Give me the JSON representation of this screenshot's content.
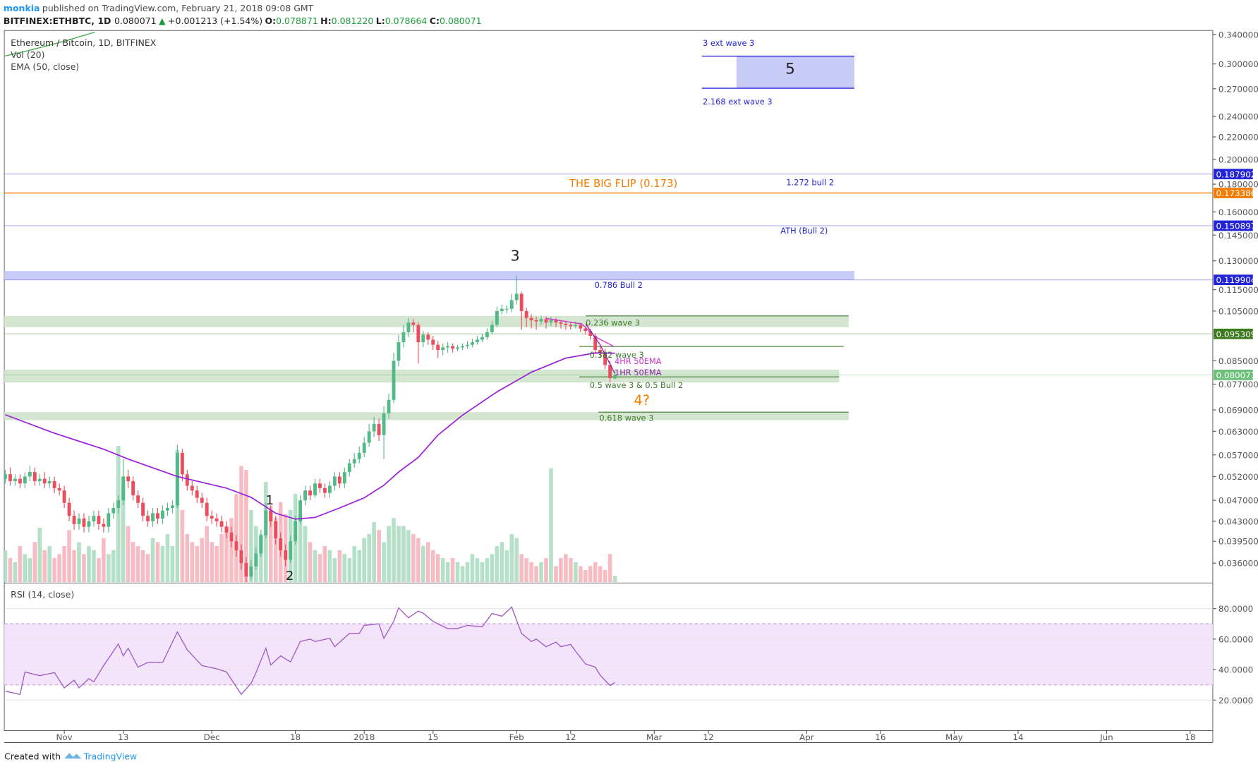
{
  "header": {
    "user": "monkia",
    "published": "published on TradingView.com, February 21, 2018 09:08 GMT",
    "symbol": "BITFINEX:ETHBTC, 1D",
    "last": "0.080071",
    "arrow": "▲",
    "change": "+0.001213 (+1.54%)",
    "o_label": "O:",
    "o": "0.078871",
    "h_label": "H:",
    "h": "0.081220",
    "l_label": "L:",
    "l": "0.078664",
    "c_label": "C:",
    "c": "0.080071"
  },
  "footer": {
    "created": "Created with",
    "brand": "TradingView"
  },
  "annotations": [
    "3 ext wave 3",
    "5",
    "2.168 ext wave 3",
    "THE BIG FLIP (0.173)",
    "1.272 bull 2",
    "ATH (Bull 2)",
    "3",
    "0.786 Bull 2",
    "0.236 wave 3",
    "0.382 wave 3",
    "4HR 50EMA",
    "1HR 50EMA",
    "0.5 wave 3 & 0.5 Bull 2",
    "4?",
    "0.618 wave 3",
    "1",
    "2"
  ],
  "chart_data": {
    "type": "candlestick",
    "title": "Ethereum / Bitcoin, 1D, BITFINEX",
    "log_scale": true,
    "up_color": "#53b987",
    "down_color": "#eb4d5c",
    "xlim": [
      -0.2,
      245.6
    ],
    "xticks": [
      {
        "value": 12,
        "label": "Nov"
      },
      {
        "value": 24,
        "label": "13"
      },
      {
        "value": 42,
        "label": "Dec"
      },
      {
        "value": 59,
        "label": "18"
      },
      {
        "value": 73,
        "label": "2018"
      },
      {
        "value": 87,
        "label": "15"
      },
      {
        "value": 104,
        "label": "Feb"
      },
      {
        "value": 115,
        "label": "12"
      },
      {
        "value": 132,
        "label": "Mar"
      },
      {
        "value": 143,
        "label": "12"
      },
      {
        "value": 163,
        "label": "Apr"
      },
      {
        "value": 178,
        "label": "16"
      },
      {
        "value": 193,
        "label": "May"
      },
      {
        "value": 206,
        "label": "14"
      },
      {
        "value": 224,
        "label": "Jun"
      },
      {
        "value": 241,
        "label": "18"
      }
    ],
    "ylim": [
      0.0332,
      0.3458
    ],
    "yticks": [
      {
        "value": 0.34,
        "label": "0.340000"
      },
      {
        "value": 0.3,
        "label": "0.300000"
      },
      {
        "value": 0.27,
        "label": "0.270000"
      },
      {
        "value": 0.24,
        "label": "0.240000"
      },
      {
        "value": 0.22,
        "label": "0.220000"
      },
      {
        "value": 0.2,
        "label": "0.200000"
      },
      {
        "value": 0.18,
        "label": "0.180000"
      },
      {
        "value": 0.16,
        "label": "0.160000"
      },
      {
        "value": 0.145,
        "label": "0.145000"
      },
      {
        "value": 0.13,
        "label": "0.130000"
      },
      {
        "value": 0.115,
        "label": "0.115000"
      },
      {
        "value": 0.105,
        "label": "0.105000"
      },
      {
        "value": 0.085,
        "label": "0.085000"
      },
      {
        "value": 0.077,
        "label": "0.077000"
      },
      {
        "value": 0.069,
        "label": "0.069000"
      },
      {
        "value": 0.063,
        "label": "0.063000"
      },
      {
        "value": 0.057,
        "label": "0.057000"
      },
      {
        "value": 0.052,
        "label": "0.052000"
      },
      {
        "value": 0.047,
        "label": "0.047000"
      },
      {
        "value": 0.043,
        "label": "0.043000"
      },
      {
        "value": 0.0395,
        "label": "0.039500"
      },
      {
        "value": 0.036,
        "label": "0.036000"
      }
    ],
    "open": [
      0.0515,
      0.0525,
      0.051,
      0.0515,
      0.0505,
      0.052,
      0.053,
      0.051,
      0.0515,
      0.0505,
      0.051,
      0.0495,
      0.049,
      0.0465,
      0.044,
      0.0425,
      0.0435,
      0.042,
      0.043,
      0.044,
      0.0425,
      0.042,
      0.0445,
      0.0455,
      0.047,
      0.052,
      0.051,
      0.048,
      0.0465,
      0.044,
      0.043,
      0.0445,
      0.0435,
      0.045,
      0.0455,
      0.046,
      0.0575,
      0.0525,
      0.05,
      0.049,
      0.0475,
      0.0465,
      0.044,
      0.0435,
      0.043,
      0.042,
      0.041,
      0.0395,
      0.038,
      0.036,
      0.034,
      0.0355,
      0.0375,
      0.0405,
      0.045,
      0.043,
      0.04,
      0.038,
      0.0365,
      0.0395,
      0.043,
      0.047,
      0.049,
      0.048,
      0.0505,
      0.0495,
      0.0485,
      0.05,
      0.052,
      0.0505,
      0.053,
      0.055,
      0.056,
      0.0575,
      0.06,
      0.063,
      0.065,
      0.062,
      0.068,
      0.072,
      0.085,
      0.092,
      0.096,
      0.1,
      0.099,
      0.092,
      0.095,
      0.093,
      0.091,
      0.089,
      0.09,
      0.0905,
      0.0895,
      0.09,
      0.0905,
      0.091,
      0.092,
      0.093,
      0.094,
      0.096,
      0.099,
      0.105,
      0.106,
      0.106,
      0.11,
      0.113,
      0.105,
      0.102,
      0.101,
      0.1005,
      0.1015,
      0.1,
      0.101,
      0.1,
      0.0995,
      0.099,
      0.0985,
      0.099,
      0.0975,
      0.0965,
      0.0945,
      0.089,
      0.088,
      0.0835,
      0.078871
    ],
    "high": [
      0.0535,
      0.054,
      0.0525,
      0.0525,
      0.053,
      0.0545,
      0.054,
      0.0525,
      0.053,
      0.052,
      0.052,
      0.0505,
      0.05,
      0.0475,
      0.045,
      0.0445,
      0.0445,
      0.044,
      0.045,
      0.045,
      0.0435,
      0.0455,
      0.0465,
      0.048,
      0.056,
      0.0535,
      0.052,
      0.049,
      0.0475,
      0.045,
      0.0455,
      0.0455,
      0.046,
      0.0465,
      0.047,
      0.0595,
      0.0585,
      0.0535,
      0.051,
      0.05,
      0.0485,
      0.0475,
      0.045,
      0.0445,
      0.044,
      0.043,
      0.042,
      0.0405,
      0.039,
      0.037,
      0.0365,
      0.0385,
      0.0415,
      0.0465,
      0.046,
      0.044,
      0.041,
      0.039,
      0.0405,
      0.044,
      0.048,
      0.05,
      0.05,
      0.0515,
      0.0515,
      0.0505,
      0.051,
      0.053,
      0.053,
      0.054,
      0.056,
      0.0575,
      0.059,
      0.0615,
      0.065,
      0.067,
      0.0665,
      0.07,
      0.074,
      0.088,
      0.095,
      0.099,
      0.102,
      0.1015,
      0.1,
      0.0965,
      0.096,
      0.0945,
      0.0925,
      0.0915,
      0.092,
      0.0915,
      0.091,
      0.0915,
      0.0925,
      0.0935,
      0.0945,
      0.0955,
      0.0975,
      0.1005,
      0.107,
      0.108,
      0.1075,
      0.113,
      0.122,
      0.114,
      0.1065,
      0.1035,
      0.1025,
      0.103,
      0.1025,
      0.1025,
      0.102,
      0.101,
      0.1005,
      0.1,
      0.1005,
      0.1,
      0.0985,
      0.0975,
      0.0955,
      0.0905,
      0.0895,
      0.085,
      0.08122
    ],
    "low": [
      0.0505,
      0.05,
      0.05,
      0.0495,
      0.0495,
      0.051,
      0.05,
      0.05,
      0.0495,
      0.0495,
      0.0485,
      0.048,
      0.0455,
      0.043,
      0.0415,
      0.0415,
      0.041,
      0.041,
      0.042,
      0.0415,
      0.041,
      0.041,
      0.0435,
      0.0445,
      0.046,
      0.0495,
      0.047,
      0.0455,
      0.043,
      0.042,
      0.042,
      0.0425,
      0.0425,
      0.044,
      0.0445,
      0.0455,
      0.051,
      0.049,
      0.048,
      0.0465,
      0.0455,
      0.043,
      0.0425,
      0.042,
      0.041,
      0.04,
      0.0385,
      0.037,
      0.035,
      0.033,
      0.0335,
      0.035,
      0.037,
      0.04,
      0.042,
      0.039,
      0.037,
      0.0355,
      0.036,
      0.039,
      0.0425,
      0.046,
      0.047,
      0.0475,
      0.0485,
      0.0475,
      0.0475,
      0.049,
      0.0495,
      0.0495,
      0.052,
      0.054,
      0.055,
      0.0565,
      0.059,
      0.0615,
      0.0605,
      0.056,
      0.0665,
      0.071,
      0.083,
      0.09,
      0.094,
      0.096,
      0.084,
      0.09,
      0.091,
      0.089,
      0.086,
      0.087,
      0.088,
      0.088,
      0.0885,
      0.089,
      0.0895,
      0.09,
      0.091,
      0.092,
      0.093,
      0.095,
      0.098,
      0.1035,
      0.104,
      0.1045,
      0.108,
      0.097,
      0.098,
      0.0975,
      0.097,
      0.099,
      0.0975,
      0.0985,
      0.098,
      0.0975,
      0.097,
      0.097,
      0.0975,
      0.096,
      0.095,
      0.093,
      0.0875,
      0.086,
      0.082,
      0.0775,
      0.078664
    ],
    "close": [
      0.0525,
      0.051,
      0.0515,
      0.0505,
      0.052,
      0.053,
      0.051,
      0.0515,
      0.0505,
      0.051,
      0.0495,
      0.049,
      0.0465,
      0.044,
      0.0425,
      0.0435,
      0.042,
      0.043,
      0.044,
      0.0425,
      0.042,
      0.0445,
      0.0455,
      0.047,
      0.052,
      0.051,
      0.048,
      0.0465,
      0.044,
      0.043,
      0.0445,
      0.0435,
      0.045,
      0.0455,
      0.046,
      0.0575,
      0.0525,
      0.05,
      0.049,
      0.0475,
      0.0465,
      0.044,
      0.0435,
      0.043,
      0.042,
      0.041,
      0.0395,
      0.038,
      0.036,
      0.034,
      0.0355,
      0.0375,
      0.0405,
      0.045,
      0.043,
      0.04,
      0.038,
      0.0365,
      0.0395,
      0.043,
      0.047,
      0.049,
      0.048,
      0.0505,
      0.0495,
      0.0485,
      0.05,
      0.052,
      0.0505,
      0.053,
      0.055,
      0.056,
      0.0575,
      0.06,
      0.063,
      0.065,
      0.062,
      0.068,
      0.072,
      0.085,
      0.092,
      0.096,
      0.1,
      0.099,
      0.092,
      0.095,
      0.093,
      0.091,
      0.089,
      0.09,
      0.0905,
      0.0895,
      0.09,
      0.0905,
      0.091,
      0.092,
      0.093,
      0.094,
      0.096,
      0.099,
      0.105,
      0.106,
      0.106,
      0.11,
      0.113,
      0.105,
      0.102,
      0.101,
      0.1005,
      0.1015,
      0.1,
      0.101,
      0.1,
      0.0995,
      0.099,
      0.0985,
      0.099,
      0.0975,
      0.0965,
      0.0945,
      0.089,
      0.088,
      0.0835,
      0.079,
      0.080071
    ],
    "volume": {
      "name": "Vol (20)",
      "up_color": "#b4e0c8",
      "down_color": "#f7bcc3",
      "ylim": [
        0,
        688
      ],
      "values": [
        40,
        30,
        25,
        45,
        35,
        30,
        50,
        68,
        40,
        45,
        30,
        35,
        45,
        65,
        40,
        50,
        35,
        45,
        40,
        30,
        55,
        35,
        40,
        170,
        120,
        70,
        50,
        45,
        40,
        35,
        55,
        50,
        45,
        60,
        45,
        165,
        90,
        60,
        50,
        45,
        55,
        70,
        50,
        45,
        60,
        70,
        80,
        110,
        145,
        140,
        90,
        70,
        60,
        125,
        95,
        80,
        100,
        85,
        90,
        110,
        85,
        70,
        50,
        40,
        35,
        45,
        40,
        30,
        40,
        35,
        30,
        45,
        40,
        55,
        60,
        75,
        65,
        50,
        70,
        80,
        70,
        70,
        65,
        60,
        55,
        45,
        50,
        40,
        35,
        30,
        25,
        30,
        25,
        20,
        25,
        35,
        30,
        25,
        30,
        35,
        45,
        50,
        40,
        60,
        55,
        35,
        30,
        25,
        20,
        25,
        30,
        142,
        20,
        30,
        35,
        30,
        25,
        20,
        15,
        20,
        25,
        20,
        15,
        35,
        8
      ]
    },
    "ema": {
      "name": "EMA (50, close)",
      "color": "#9b1fd8",
      "x": [
        0,
        10,
        20,
        25,
        35,
        45,
        50,
        55,
        59,
        63,
        68,
        73,
        77,
        80,
        84,
        88,
        93,
        100,
        107,
        114,
        120,
        124
      ],
      "values": [
        0.0676,
        0.0625,
        0.0584,
        0.056,
        0.052,
        0.0495,
        0.0476,
        0.0445,
        0.0434,
        0.0437,
        0.0455,
        0.0475,
        0.0501,
        0.053,
        0.0564,
        0.062,
        0.0675,
        0.0745,
        0.081,
        0.086,
        0.0879,
        0.0878
      ]
    },
    "price_lines": [
      {
        "value": 0.187902,
        "color": "#2424d8"
      },
      {
        "value": 0.173386,
        "color": "#f57c00"
      },
      {
        "value": 0.150897,
        "color": "#2424d8"
      },
      {
        "value": 0.119904,
        "color": "#2424d8"
      },
      {
        "value": 0.095309,
        "color": "#3b7a1e"
      },
      {
        "value": 0.080071,
        "color": "#6cc07a"
      }
    ],
    "rsi": {
      "name": "RSI (14, close)",
      "color": "#a15ec4",
      "band": [
        30,
        70
      ],
      "band_color": "#f3e4fb",
      "ylim": [
        0,
        96.3
      ],
      "yticks": [
        {
          "value": 80,
          "label": "80.0000"
        },
        {
          "value": 60,
          "label": "60.0000"
        },
        {
          "value": 40,
          "label": "40.0000"
        },
        {
          "value": 20,
          "label": "20.0000"
        }
      ],
      "x": [
        0,
        3,
        4,
        7,
        10,
        12,
        14,
        15,
        17,
        18,
        20,
        23,
        24,
        25,
        27,
        29,
        32,
        35,
        37,
        40,
        43,
        45,
        48,
        50,
        51,
        53,
        54,
        56,
        58,
        60,
        62,
        63,
        66,
        67,
        70,
        72,
        73,
        76,
        77,
        79,
        80,
        82,
        84,
        85,
        87,
        90,
        92,
        94,
        97,
        99,
        101,
        103,
        105,
        107,
        108,
        110,
        112,
        113,
        115,
        116,
        118,
        120,
        121,
        123,
        124
      ],
      "values": [
        25.8,
        23.7,
        38.4,
        36,
        38,
        28,
        33,
        28,
        34,
        32,
        42.6,
        56.8,
        49,
        54,
        41.6,
        44.7,
        44.7,
        64.7,
        53,
        42.6,
        40.5,
        38.4,
        23.7,
        31,
        38,
        54,
        43,
        49,
        45,
        58.4,
        60,
        58.4,
        60.5,
        55,
        63.7,
        63.7,
        69,
        70,
        60.5,
        71.6,
        80.5,
        74,
        78.4,
        77,
        71.6,
        66.8,
        67,
        69,
        68,
        76.8,
        75,
        81,
        63.7,
        58.4,
        60,
        55,
        58,
        55,
        56.5,
        52,
        43.7,
        41.6,
        36.3,
        29.5,
        31.6
      ]
    }
  }
}
